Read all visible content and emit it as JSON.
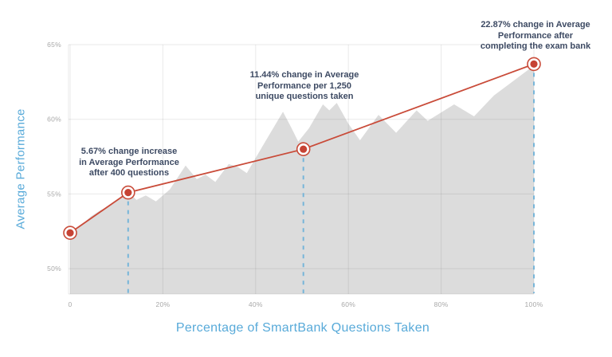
{
  "chart_data": {
    "type": "area",
    "title": "",
    "xlabel": "Percentage of SmartBank Questions Taken",
    "ylabel": "Average Performance",
    "xlim": [
      0,
      100
    ],
    "ylim": [
      48.3,
      65
    ],
    "grid": "on",
    "legend": "none",
    "x_ticks": [
      {
        "v": 0,
        "label": "0"
      },
      {
        "v": 20,
        "label": "20%"
      },
      {
        "v": 40,
        "label": "40%"
      },
      {
        "v": 60,
        "label": "60%"
      },
      {
        "v": 80,
        "label": "80%"
      },
      {
        "v": 100,
        "label": "100%"
      }
    ],
    "y_ticks": [
      {
        "v": 65,
        "label": "65%"
      },
      {
        "v": 60,
        "label": "60%"
      },
      {
        "v": 55,
        "label": "55%"
      },
      {
        "v": 50,
        "label": "50%"
      }
    ],
    "area_series": {
      "name": "average-performance-by-questions-taken",
      "fill_color": "#dcdcdc",
      "points": [
        [
          0,
          52.2
        ],
        [
          2,
          52.8
        ],
        [
          4.5,
          53.5
        ],
        [
          6.5,
          53.9
        ],
        [
          8.5,
          54.2
        ],
        [
          10.5,
          54.7
        ],
        [
          12.4,
          55.2
        ],
        [
          14.3,
          54.6
        ],
        [
          16.3,
          54.9
        ],
        [
          18.5,
          54.5
        ],
        [
          21.5,
          55.3
        ],
        [
          24.9,
          56.9
        ],
        [
          27.3,
          56.0
        ],
        [
          29.2,
          56.3
        ],
        [
          31.3,
          55.8
        ],
        [
          34.2,
          57.0
        ],
        [
          36.2,
          56.8
        ],
        [
          38.1,
          56.4
        ],
        [
          41.5,
          58.2
        ],
        [
          45.9,
          60.5
        ],
        [
          47.6,
          59.5
        ],
        [
          49.2,
          58.5
        ],
        [
          51.5,
          59.4
        ],
        [
          54.5,
          61.0
        ],
        [
          55.9,
          60.6
        ],
        [
          57.5,
          61.1
        ],
        [
          60.0,
          59.7
        ],
        [
          62.5,
          58.6
        ],
        [
          66.5,
          60.3
        ],
        [
          70.3,
          59.1
        ],
        [
          74.7,
          60.6
        ],
        [
          77.1,
          59.9
        ],
        [
          82.8,
          61.0
        ],
        [
          87.1,
          60.2
        ],
        [
          91.4,
          61.6
        ],
        [
          95.7,
          62.6
        ],
        [
          100,
          63.6
        ]
      ]
    },
    "trend_line": {
      "name": "milestone-trend-line",
      "color": "#c94b39"
    },
    "milestones": [
      {
        "x": 0,
        "y": 52.4,
        "label": null,
        "guide": false
      },
      {
        "x": 12.5,
        "y": 55.1,
        "label": "5.67% change increase\nin Average Performance\nafter 400 questions",
        "guide": true
      },
      {
        "x": 50.3,
        "y": 58.0,
        "label": "11.44% change in Average\nPerformance per 1,250\nunique questions taken",
        "guide": true
      },
      {
        "x": 100,
        "y": 63.7,
        "label": "22.87% change in Average\nPerformance after\ncompleting the exam bank",
        "guide": true
      }
    ],
    "guide_lines": {
      "style": "dashed",
      "color": "#6cb1d9"
    },
    "marker_style": {
      "inner_fill": "#c64334",
      "ring_stroke": "#c94b39",
      "ring_fill": "#ffffff"
    },
    "colors": {
      "annotation_text": "#3d4a63",
      "axis_title": "#58aad9",
      "tick_label": "#a8a8a8",
      "grid_line": "#e6e6e6",
      "area_fill": "#dcdcdc"
    }
  }
}
